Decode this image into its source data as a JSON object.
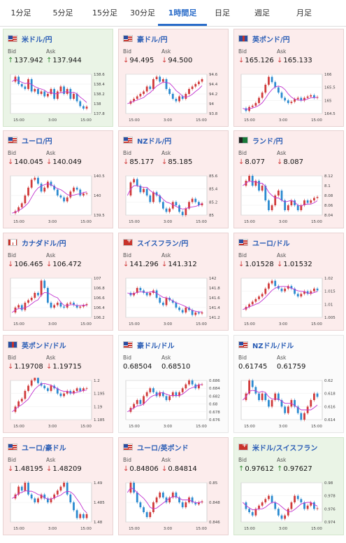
{
  "tabs": [
    {
      "label": "1分足",
      "active": false
    },
    {
      "label": "5分足",
      "active": false
    },
    {
      "label": "15分足",
      "active": false
    },
    {
      "label": "30分足",
      "active": false
    },
    {
      "label": "1時間足",
      "active": true
    },
    {
      "label": "日足",
      "active": false
    },
    {
      "label": "週足",
      "active": false
    },
    {
      "label": "月足",
      "active": false
    }
  ],
  "labels": {
    "bid": "Bid",
    "ask": "Ask"
  },
  "colors": {
    "up": "#2f8a2f",
    "down": "#d03a3a",
    "ma": "#c233d0",
    "ma2": "#2a8ad0",
    "tab_active": "#2a6cc9"
  },
  "cards": [
    {
      "pair": "米ドル/円",
      "flag": "us",
      "trend": "up",
      "bid": "137.942",
      "ask": "137.944",
      "y_ticks": [
        "138.6",
        "138.4",
        "138.2",
        "138",
        "137.8"
      ],
      "x_ticks": [
        "15:00",
        "3:00",
        "15:00"
      ],
      "series": [
        138.45,
        138.55,
        138.4,
        138.35,
        138.3,
        138.5,
        138.25,
        138.3,
        138.2,
        138.25,
        138.15,
        138.2,
        138.3,
        138.1,
        138.25,
        138.35,
        138.2,
        138.3,
        138.1,
        138.2,
        138.05,
        137.95,
        137.9,
        137.94
      ]
    },
    {
      "pair": "豪ドル/円",
      "flag": "au",
      "trend": "down",
      "bid": "94.495",
      "ask": "94.500",
      "y_ticks": [
        "94.6",
        "94.4",
        "94.2",
        "94",
        "93.8"
      ],
      "x_ticks": [
        "15:00",
        "3:00",
        "15:00"
      ],
      "series": [
        94.0,
        94.05,
        94.1,
        94.15,
        94.2,
        94.25,
        94.35,
        94.3,
        94.5,
        94.55,
        94.45,
        94.5,
        94.3,
        94.2,
        94.1,
        94.05,
        94.15,
        94.1,
        94.2,
        94.3,
        94.35,
        94.4,
        94.45,
        94.5
      ]
    },
    {
      "pair": "英ポンド/円",
      "flag": "uk",
      "trend": "down",
      "bid": "165.126",
      "ask": "165.133",
      "y_ticks": [
        "166",
        "165.5",
        "165",
        "164.5"
      ],
      "x_ticks": [
        "15:00",
        "3:00",
        "15:00"
      ],
      "series": [
        164.7,
        164.6,
        164.75,
        164.8,
        164.9,
        165.1,
        165.3,
        165.6,
        165.9,
        165.7,
        165.5,
        165.3,
        165.1,
        165.0,
        164.9,
        164.95,
        165.05,
        165.1,
        165.0,
        165.1,
        165.15,
        165.2,
        165.1,
        165.13
      ]
    },
    {
      "pair": "ユーロ/円",
      "flag": "eu",
      "trend": "down",
      "bid": "140.045",
      "ask": "140.049",
      "y_ticks": [
        "140.5",
        "140",
        "139.5"
      ],
      "x_ticks": [
        "15:00",
        "3:00",
        "15:00"
      ],
      "series": [
        139.55,
        139.6,
        139.7,
        139.8,
        140.0,
        140.2,
        140.4,
        140.45,
        140.3,
        140.1,
        140.2,
        140.35,
        140.25,
        140.15,
        140.0,
        139.95,
        139.85,
        139.95,
        140.1,
        140.2,
        140.15,
        140.0,
        140.05,
        140.05
      ]
    },
    {
      "pair": "NZドル/円",
      "flag": "au",
      "trend": "down",
      "bid": "85.177",
      "ask": "85.185",
      "y_ticks": [
        "85.6",
        "85.4",
        "85.2",
        "85"
      ],
      "x_ticks": [
        "15:00",
        "3:00",
        "15:00"
      ],
      "series": [
        85.3,
        85.5,
        85.55,
        85.45,
        85.35,
        85.4,
        85.3,
        85.2,
        85.35,
        85.3,
        85.2,
        85.1,
        85.05,
        85.1,
        85.2,
        85.15,
        85.05,
        85.0,
        85.1,
        85.2,
        85.25,
        85.2,
        85.15,
        85.18
      ]
    },
    {
      "pair": "ランド/円",
      "flag": "za",
      "trend": "down",
      "bid": "8.077",
      "ask": "8.087",
      "y_ticks": [
        "8.12",
        "8.1",
        "8.08",
        "8.06",
        "8.04"
      ],
      "x_ticks": [
        "15:00",
        "3:00",
        "15:00"
      ],
      "series": [
        8.1,
        8.11,
        8.12,
        8.1,
        8.11,
        8.09,
        8.1,
        8.07,
        8.05,
        8.06,
        8.08,
        8.09,
        8.07,
        8.05,
        8.06,
        8.07,
        8.06,
        8.05,
        8.06,
        8.07,
        8.065,
        8.07,
        8.075,
        8.077
      ]
    },
    {
      "pair": "カナダドル/円",
      "flag": "ca",
      "trend": "down",
      "bid": "106.465",
      "ask": "106.472",
      "y_ticks": [
        "107",
        "106.8",
        "106.6",
        "106.4",
        "106.2"
      ],
      "x_ticks": [
        "15:00",
        "3:00",
        "15:00"
      ],
      "series": [
        106.3,
        106.4,
        106.45,
        106.35,
        106.5,
        106.55,
        106.6,
        106.7,
        106.65,
        106.95,
        106.8,
        106.5,
        106.4,
        106.45,
        106.5,
        106.42,
        106.4,
        106.48,
        106.5,
        106.45,
        106.4,
        106.42,
        106.45,
        106.47
      ]
    },
    {
      "pair": "スイスフラン/円",
      "flag": "red",
      "trend": "down",
      "bid": "141.296",
      "ask": "141.312",
      "y_ticks": [
        "142",
        "141.8",
        "141.6",
        "141.4",
        "141.2"
      ],
      "x_ticks": [
        "15:00",
        "3:00",
        "15:00"
      ],
      "series": [
        141.7,
        141.65,
        141.7,
        141.8,
        141.75,
        141.7,
        141.65,
        141.7,
        141.75,
        141.6,
        141.5,
        141.45,
        141.6,
        141.55,
        141.5,
        141.4,
        141.35,
        141.3,
        141.4,
        141.35,
        141.25,
        141.3,
        141.28,
        141.3
      ]
    },
    {
      "pair": "ユーロ/ドル",
      "flag": "eu",
      "trend": "down",
      "bid": "1.01528",
      "ask": "1.01532",
      "y_ticks": [
        "1.02",
        "1.015",
        "1.01",
        "1.005"
      ],
      "x_ticks": [
        "15:00",
        "3:00",
        "15:00"
      ],
      "series": [
        1.008,
        1.009,
        1.01,
        1.011,
        1.012,
        1.013,
        1.014,
        1.016,
        1.018,
        1.019,
        1.017,
        1.016,
        1.015,
        1.016,
        1.017,
        1.016,
        1.014,
        1.013,
        1.014,
        1.015,
        1.014,
        1.015,
        1.016,
        1.0153
      ]
    },
    {
      "pair": "英ポンド/ドル",
      "flag": "uk",
      "trend": "down",
      "bid": "1.19708",
      "ask": "1.19715",
      "y_ticks": [
        "1.2",
        "1.195",
        "1.19",
        "1.185"
      ],
      "x_ticks": [
        "15:00",
        "3:00",
        "15:00"
      ],
      "series": [
        1.188,
        1.19,
        1.192,
        1.193,
        1.196,
        1.198,
        1.2,
        1.201,
        1.199,
        1.198,
        1.197,
        1.196,
        1.198,
        1.197,
        1.195,
        1.194,
        1.195,
        1.196,
        1.195,
        1.196,
        1.197,
        1.196,
        1.197,
        1.197
      ]
    },
    {
      "pair": "豪ドル/ドル",
      "flag": "au",
      "trend": "neutral",
      "bid": "0.68504",
      "ask": "0.68510",
      "y_ticks": [
        "0.686",
        "0.684",
        "0.682",
        "0.68",
        "0.678",
        "0.676"
      ],
      "x_ticks": [
        "15:00",
        "3:00",
        "15:00"
      ],
      "series": [
        0.678,
        0.679,
        0.68,
        0.681,
        0.68,
        0.682,
        0.683,
        0.684,
        0.683,
        0.682,
        0.683,
        0.682,
        0.681,
        0.682,
        0.683,
        0.682,
        0.683,
        0.684,
        0.685,
        0.686,
        0.685,
        0.684,
        0.685,
        0.685
      ]
    },
    {
      "pair": "NZドル/ドル",
      "flag": "au",
      "trend": "neutral",
      "bid": "0.61745",
      "ask": "0.61759",
      "y_ticks": [
        "0.62",
        "0.618",
        "0.616",
        "0.614"
      ],
      "x_ticks": [
        "15:00",
        "3:00",
        "15:00"
      ],
      "series": [
        0.617,
        0.618,
        0.62,
        0.619,
        0.618,
        0.617,
        0.618,
        0.617,
        0.616,
        0.617,
        0.618,
        0.617,
        0.616,
        0.615,
        0.616,
        0.617,
        0.616,
        0.615,
        0.614,
        0.615,
        0.616,
        0.617,
        0.618,
        0.6175
      ]
    },
    {
      "pair": "ユーロ/豪ドル",
      "flag": "eu",
      "trend": "down",
      "bid": "1.48195",
      "ask": "1.48209",
      "y_ticks": [
        "1.49",
        "1.485",
        "1.48"
      ],
      "x_ticks": [
        "15:00",
        "3:00",
        "15:00"
      ],
      "series": [
        1.486,
        1.487,
        1.489,
        1.488,
        1.49,
        1.487,
        1.486,
        1.485,
        1.486,
        1.487,
        1.486,
        1.485,
        1.486,
        1.487,
        1.488,
        1.489,
        1.49,
        1.487,
        1.485,
        1.483,
        1.481,
        1.482,
        1.481,
        1.482
      ]
    },
    {
      "pair": "ユーロ/英ポンド",
      "flag": "eu",
      "trend": "down",
      "bid": "0.84806",
      "ask": "0.84814",
      "y_ticks": [
        "0.85",
        "0.848",
        "0.846"
      ],
      "x_ticks": [
        "15:00",
        "3:00",
        "15:00"
      ],
      "series": [
        0.849,
        0.85,
        0.849,
        0.848,
        0.8475,
        0.847,
        0.8465,
        0.847,
        0.848,
        0.8485,
        0.849,
        0.8485,
        0.848,
        0.8485,
        0.849,
        0.8485,
        0.848,
        0.8475,
        0.848,
        0.8485,
        0.848,
        0.8478,
        0.848,
        0.8481
      ]
    },
    {
      "pair": "米ドル/スイスフラン",
      "flag": "red",
      "trend": "up",
      "bid": "0.97612",
      "ask": "0.97627",
      "y_ticks": [
        "0.98",
        "0.978",
        "0.976",
        "0.974"
      ],
      "x_ticks": [
        "15:00",
        "3:00",
        "15:00"
      ],
      "series": [
        0.977,
        0.976,
        0.9755,
        0.975,
        0.976,
        0.9765,
        0.977,
        0.9775,
        0.978,
        0.977,
        0.976,
        0.975,
        0.9745,
        0.975,
        0.976,
        0.977,
        0.978,
        0.9775,
        0.977,
        0.976,
        0.9765,
        0.977,
        0.976,
        0.9761
      ]
    }
  ]
}
